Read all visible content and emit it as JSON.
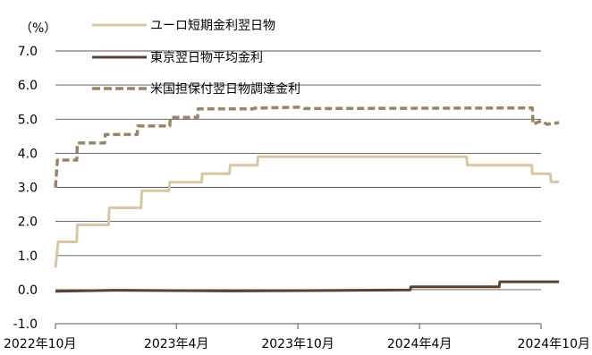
{
  "chart_data": {
    "type": "line",
    "unit_label": "（%）",
    "ylim": [
      -1.0,
      7.0
    ],
    "y_ticks": [
      "7.0",
      "6.0",
      "5.0",
      "4.0",
      "3.0",
      "2.0",
      "1.0",
      "0.0",
      "-1.0"
    ],
    "x_range": [
      "2022-10",
      "2024-10"
    ],
    "x_ticks": [
      {
        "date": "2022-10",
        "label": "2022年10月"
      },
      {
        "date": "2023-04",
        "label": "2023年4月"
      },
      {
        "date": "2023-10",
        "label": "2023年10月"
      },
      {
        "date": "2024-04",
        "label": "2024年4月"
      },
      {
        "date": "2024-10",
        "label": "2024年10月"
      }
    ],
    "grid": true,
    "legend_position": "top",
    "series": [
      {
        "name": "ユーロ短期金利翌日物",
        "color": "#d8c6a0",
        "style": "solid",
        "points": [
          [
            "2022-10",
            0.65
          ],
          [
            "2022-10-05",
            1.4
          ],
          [
            "2022-11-02",
            1.4
          ],
          [
            "2022-11-03",
            1.9
          ],
          [
            "2022-12-20",
            1.9
          ],
          [
            "2022-12-21",
            2.4
          ],
          [
            "2023-02-07",
            2.4
          ],
          [
            "2023-02-08",
            2.9
          ],
          [
            "2023-03-21",
            2.9
          ],
          [
            "2023-03-22",
            3.15
          ],
          [
            "2023-05-09",
            3.15
          ],
          [
            "2023-05-10",
            3.4
          ],
          [
            "2023-06-20",
            3.4
          ],
          [
            "2023-06-21",
            3.65
          ],
          [
            "2023-08-01",
            3.65
          ],
          [
            "2023-08-02",
            3.9
          ],
          [
            "2024-06-11",
            3.9
          ],
          [
            "2024-06-12",
            3.65
          ],
          [
            "2024-09-17",
            3.65
          ],
          [
            "2024-09-18",
            3.4
          ],
          [
            "2024-10-15",
            3.4
          ],
          [
            "2024-10-16",
            3.16
          ],
          [
            "2024-10-28",
            3.16
          ]
        ]
      },
      {
        "name": "東京翌日物平均金利",
        "color": "#5a4233",
        "style": "solid",
        "points": [
          [
            "2022-10",
            -0.05
          ],
          [
            "2023-01",
            -0.02
          ],
          [
            "2023-04",
            -0.03
          ],
          [
            "2023-07",
            -0.04
          ],
          [
            "2024-03-18",
            -0.01
          ],
          [
            "2024-03-19",
            0.08
          ],
          [
            "2024-07-30",
            0.08
          ],
          [
            "2024-07-31",
            0.23
          ],
          [
            "2024-10-28",
            0.23
          ]
        ]
      },
      {
        "name": "米国担保付翌日物調達金利",
        "color": "#9a8466",
        "style": "dashed",
        "points": [
          [
            "2022-10",
            3.0
          ],
          [
            "2022-10-04",
            3.8
          ],
          [
            "2022-11-02",
            3.8
          ],
          [
            "2022-11-03",
            4.3
          ],
          [
            "2022-12-14",
            4.3
          ],
          [
            "2022-12-15",
            4.55
          ],
          [
            "2023-02-01",
            4.55
          ],
          [
            "2023-02-02",
            4.8
          ],
          [
            "2023-03-22",
            4.8
          ],
          [
            "2023-03-23",
            5.05
          ],
          [
            "2023-05-03",
            5.05
          ],
          [
            "2023-05-04",
            5.3
          ],
          [
            "2023-07-26",
            5.3
          ],
          [
            "2023-07-27",
            5.32
          ],
          [
            "2023-09-30",
            5.35
          ],
          [
            "2023-10-02",
            5.35
          ],
          [
            "2023-10-10",
            5.31
          ],
          [
            "2024-09-18",
            5.33
          ],
          [
            "2024-09-19",
            4.85
          ],
          [
            "2024-10-01",
            4.95
          ],
          [
            "2024-10-10",
            4.85
          ],
          [
            "2024-10-28",
            4.9
          ]
        ]
      }
    ]
  }
}
